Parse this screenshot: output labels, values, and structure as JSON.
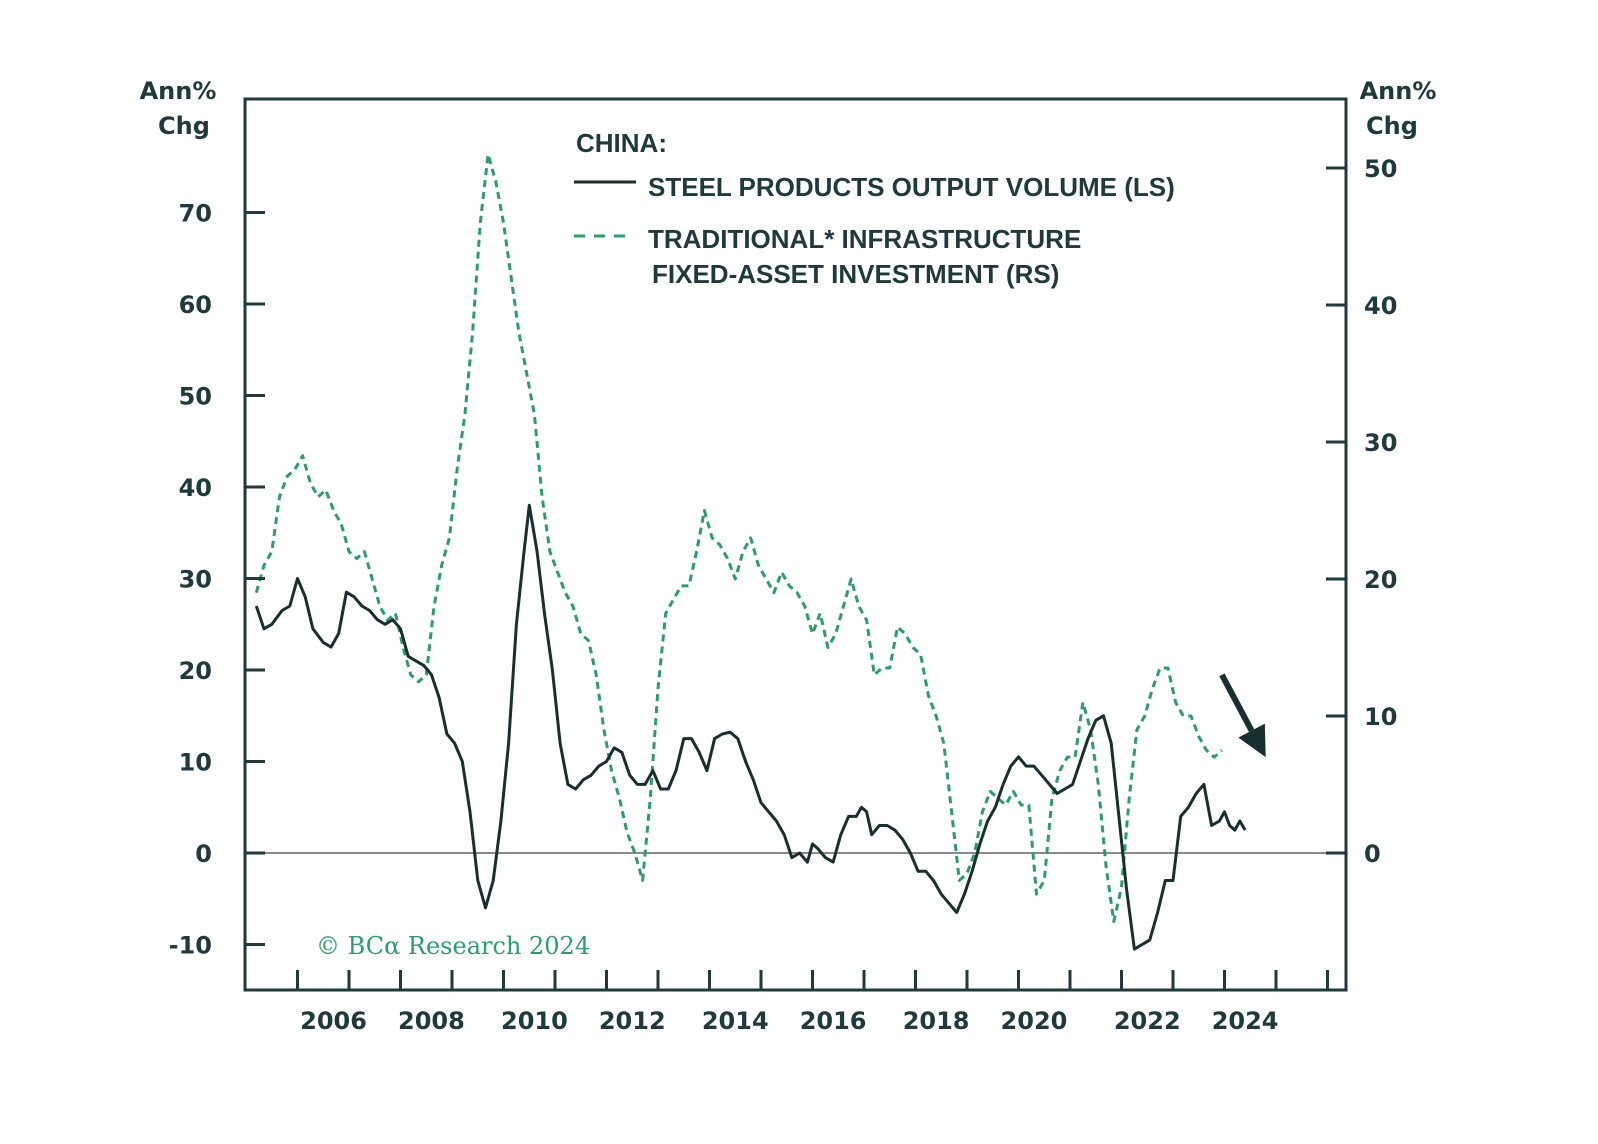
{
  "colors": {
    "steel": "#17302f",
    "infra": "#2a9d6a",
    "frame": "#1e3a3a",
    "zero": "#8a8a8a"
  },
  "chart_data": {
    "type": "line",
    "left_axis": {
      "title_line1": "Ann%",
      "title_line2": "Chg",
      "ylim": [
        -15,
        82
      ],
      "ticks": [
        -10,
        0,
        10,
        20,
        30,
        40,
        50,
        60,
        70
      ]
    },
    "right_axis": {
      "title_line1": "Ann%",
      "title_line2": "Chg",
      "ylim": [
        -10,
        55
      ],
      "ticks": [
        0,
        10,
        20,
        30,
        40,
        50
      ]
    },
    "xlim": [
      2004.1,
      2025.0
    ],
    "x_ticks": [
      2005,
      2006,
      2007,
      2008,
      2009,
      2010,
      2011,
      2012,
      2013,
      2014,
      2015,
      2016,
      2017,
      2018,
      2019,
      2020,
      2021,
      2022,
      2023,
      2024,
      2025
    ],
    "x_tick_labels": [
      {
        "x": 2005.7,
        "label": "2006"
      },
      {
        "x": 2007.6,
        "label": "2008"
      },
      {
        "x": 2009.6,
        "label": "2010"
      },
      {
        "x": 2011.5,
        "label": "2012"
      },
      {
        "x": 2013.5,
        "label": "2014"
      },
      {
        "x": 2015.4,
        "label": "2016"
      },
      {
        "x": 2017.4,
        "label": "2018"
      },
      {
        "x": 2019.3,
        "label": "2020"
      },
      {
        "x": 2021.5,
        "label": "2022"
      },
      {
        "x": 2023.4,
        "label": "2024"
      }
    ],
    "legend": {
      "title": "CHINA:",
      "steel_label": "STEEL PRODUCTS OUTPUT VOLUME (LS)",
      "infra_label_line1": "TRADITIONAL* INFRASTRUCTURE",
      "infra_label_line2": "FIXED-ASSET INVESTMENT (RS)",
      "placement": "top-center"
    },
    "credit": "© BCα Research 2024",
    "series": [
      {
        "name": "STEEL PRODUCTS OUTPUT VOLUME (LS)",
        "axis": "left",
        "style": "solid",
        "points": [
          [
            2004.2,
            27
          ],
          [
            2004.35,
            24.5
          ],
          [
            2004.5,
            25
          ],
          [
            2004.7,
            26.5
          ],
          [
            2004.85,
            27
          ],
          [
            2005.0,
            30
          ],
          [
            2005.15,
            28
          ],
          [
            2005.3,
            24.5
          ],
          [
            2005.5,
            23
          ],
          [
            2005.65,
            22.5
          ],
          [
            2005.8,
            24
          ],
          [
            2005.95,
            28.5
          ],
          [
            2006.1,
            28
          ],
          [
            2006.25,
            27
          ],
          [
            2006.4,
            26.5
          ],
          [
            2006.55,
            25.5
          ],
          [
            2006.7,
            25
          ],
          [
            2006.85,
            25.5
          ],
          [
            2007.0,
            24.5
          ],
          [
            2007.15,
            21.5
          ],
          [
            2007.3,
            21
          ],
          [
            2007.45,
            20.5
          ],
          [
            2007.6,
            19.5
          ],
          [
            2007.75,
            17
          ],
          [
            2007.9,
            13
          ],
          [
            2008.05,
            12
          ],
          [
            2008.2,
            10
          ],
          [
            2008.35,
            4.5
          ],
          [
            2008.5,
            -3
          ],
          [
            2008.65,
            -6
          ],
          [
            2008.8,
            -3
          ],
          [
            2008.95,
            3.5
          ],
          [
            2009.1,
            12
          ],
          [
            2009.25,
            25
          ],
          [
            2009.4,
            33
          ],
          [
            2009.5,
            38
          ],
          [
            2009.65,
            33
          ],
          [
            2009.8,
            26
          ],
          [
            2009.95,
            20
          ],
          [
            2010.1,
            12
          ],
          [
            2010.25,
            7.5
          ],
          [
            2010.4,
            7
          ],
          [
            2010.55,
            8
          ],
          [
            2010.7,
            8.5
          ],
          [
            2010.85,
            9.5
          ],
          [
            2011.0,
            10
          ],
          [
            2011.15,
            11.5
          ],
          [
            2011.3,
            11
          ],
          [
            2011.45,
            8.5
          ],
          [
            2011.6,
            7.5
          ],
          [
            2011.75,
            7.5
          ],
          [
            2011.9,
            9
          ],
          [
            2012.05,
            7
          ],
          [
            2012.2,
            7
          ],
          [
            2012.35,
            9
          ],
          [
            2012.5,
            12.5
          ],
          [
            2012.65,
            12.5
          ],
          [
            2012.8,
            11
          ],
          [
            2012.95,
            9
          ],
          [
            2013.1,
            12.5
          ],
          [
            2013.25,
            13
          ],
          [
            2013.4,
            13.2
          ],
          [
            2013.55,
            12.5
          ],
          [
            2013.7,
            10
          ],
          [
            2013.85,
            8
          ],
          [
            2014.0,
            5.5
          ],
          [
            2014.15,
            4.5
          ],
          [
            2014.3,
            3.5
          ],
          [
            2014.45,
            2
          ],
          [
            2014.6,
            -0.5
          ],
          [
            2014.75,
            0
          ],
          [
            2014.9,
            -1
          ],
          [
            2015.0,
            1
          ],
          [
            2015.1,
            0.5
          ],
          [
            2015.25,
            -0.5
          ],
          [
            2015.4,
            -1
          ],
          [
            2015.55,
            2
          ],
          [
            2015.7,
            4
          ],
          [
            2015.85,
            4
          ],
          [
            2015.95,
            5
          ],
          [
            2016.05,
            4.5
          ],
          [
            2016.15,
            2
          ],
          [
            2016.3,
            3
          ],
          [
            2016.45,
            3
          ],
          [
            2016.6,
            2.5
          ],
          [
            2016.75,
            1.5
          ],
          [
            2016.9,
            0
          ],
          [
            2017.05,
            -2
          ],
          [
            2017.2,
            -2
          ],
          [
            2017.35,
            -3
          ],
          [
            2017.5,
            -4.5
          ],
          [
            2017.65,
            -5.5
          ],
          [
            2017.8,
            -6.5
          ],
          [
            2017.95,
            -4.5
          ],
          [
            2018.1,
            -2
          ],
          [
            2018.25,
            1
          ],
          [
            2018.4,
            3.5
          ],
          [
            2018.55,
            5
          ],
          [
            2018.7,
            7.5
          ],
          [
            2018.85,
            9.5
          ],
          [
            2019.0,
            10.5
          ],
          [
            2019.15,
            9.5
          ],
          [
            2019.3,
            9.5
          ],
          [
            2019.45,
            8.5
          ],
          [
            2019.6,
            7.5
          ],
          [
            2019.75,
            6.5
          ],
          [
            2019.9,
            7
          ],
          [
            2020.05,
            7.5
          ],
          [
            2020.2,
            10
          ],
          [
            2020.35,
            12.5
          ],
          [
            2020.5,
            14.5
          ],
          [
            2020.65,
            15
          ],
          [
            2020.8,
            12
          ],
          [
            2020.95,
            4
          ],
          [
            2021.1,
            -4
          ],
          [
            2021.25,
            -10.5
          ],
          [
            2021.4,
            -10
          ],
          [
            2021.55,
            -9.5
          ],
          [
            2021.7,
            -6.5
          ],
          [
            2021.85,
            -3
          ],
          [
            2022.0,
            -3
          ],
          [
            2022.15,
            4
          ],
          [
            2022.3,
            5
          ],
          [
            2022.45,
            6.5
          ],
          [
            2022.6,
            7.5
          ],
          [
            2022.75,
            3
          ],
          [
            2022.9,
            3.5
          ],
          [
            2023.0,
            4.5
          ],
          [
            2023.1,
            3
          ],
          [
            2023.2,
            2.5
          ],
          [
            2023.3,
            3.5
          ],
          [
            2023.4,
            2.5
          ]
        ]
      },
      {
        "name": "TRADITIONAL* INFRASTRUCTURE FIXED-ASSET INVESTMENT (RS)",
        "axis": "right",
        "style": "dashed",
        "points": [
          [
            2004.2,
            19
          ],
          [
            2004.35,
            21
          ],
          [
            2004.5,
            22
          ],
          [
            2004.65,
            26
          ],
          [
            2004.8,
            27.5
          ],
          [
            2004.95,
            28
          ],
          [
            2005.1,
            29
          ],
          [
            2005.25,
            27
          ],
          [
            2005.4,
            26
          ],
          [
            2005.55,
            26.5
          ],
          [
            2005.7,
            25
          ],
          [
            2005.85,
            24
          ],
          [
            2006.0,
            22
          ],
          [
            2006.15,
            21.5
          ],
          [
            2006.3,
            22
          ],
          [
            2006.45,
            20
          ],
          [
            2006.6,
            18
          ],
          [
            2006.75,
            17
          ],
          [
            2006.9,
            17.5
          ],
          [
            2007.05,
            15
          ],
          [
            2007.2,
            13
          ],
          [
            2007.35,
            12.5
          ],
          [
            2007.5,
            13
          ],
          [
            2007.65,
            18
          ],
          [
            2007.8,
            21
          ],
          [
            2007.95,
            23
          ],
          [
            2008.1,
            28
          ],
          [
            2008.25,
            32
          ],
          [
            2008.4,
            38
          ],
          [
            2008.55,
            46
          ],
          [
            2008.7,
            51
          ],
          [
            2008.85,
            49
          ],
          [
            2009.0,
            46
          ],
          [
            2009.15,
            42
          ],
          [
            2009.3,
            38
          ],
          [
            2009.45,
            35
          ],
          [
            2009.6,
            32
          ],
          [
            2009.75,
            26
          ],
          [
            2009.9,
            22
          ],
          [
            2010.05,
            20.5
          ],
          [
            2010.2,
            19
          ],
          [
            2010.35,
            18
          ],
          [
            2010.5,
            16
          ],
          [
            2010.65,
            15.5
          ],
          [
            2010.8,
            13
          ],
          [
            2010.95,
            9
          ],
          [
            2011.1,
            6
          ],
          [
            2011.25,
            4
          ],
          [
            2011.4,
            1.5
          ],
          [
            2011.55,
            0
          ],
          [
            2011.7,
            -2
          ],
          [
            2011.85,
            4
          ],
          [
            2012.0,
            12
          ],
          [
            2012.15,
            17.5
          ],
          [
            2012.3,
            18.5
          ],
          [
            2012.45,
            19.5
          ],
          [
            2012.6,
            19.5
          ],
          [
            2012.75,
            22
          ],
          [
            2012.9,
            25
          ],
          [
            2013.05,
            23
          ],
          [
            2013.2,
            22.5
          ],
          [
            2013.35,
            21.5
          ],
          [
            2013.5,
            20
          ],
          [
            2013.65,
            22
          ],
          [
            2013.8,
            23
          ],
          [
            2013.95,
            21
          ],
          [
            2014.1,
            20
          ],
          [
            2014.25,
            19
          ],
          [
            2014.4,
            20.5
          ],
          [
            2014.55,
            19.5
          ],
          [
            2014.7,
            19
          ],
          [
            2014.85,
            18
          ],
          [
            2015.0,
            16
          ],
          [
            2015.15,
            17.5
          ],
          [
            2015.3,
            15
          ],
          [
            2015.45,
            16
          ],
          [
            2015.6,
            18
          ],
          [
            2015.75,
            20
          ],
          [
            2015.9,
            18
          ],
          [
            2016.05,
            17
          ],
          [
            2016.2,
            13
          ],
          [
            2016.35,
            13.5
          ],
          [
            2016.5,
            13.5
          ],
          [
            2016.65,
            16.5
          ],
          [
            2016.8,
            16
          ],
          [
            2016.95,
            15
          ],
          [
            2017.1,
            14.5
          ],
          [
            2017.25,
            11.5
          ],
          [
            2017.4,
            10
          ],
          [
            2017.55,
            8
          ],
          [
            2017.7,
            3
          ],
          [
            2017.85,
            -2
          ],
          [
            2018.0,
            -1.5
          ],
          [
            2018.15,
            0
          ],
          [
            2018.3,
            3
          ],
          [
            2018.45,
            4.5
          ],
          [
            2018.6,
            4
          ],
          [
            2018.75,
            3.5
          ],
          [
            2018.9,
            4.5
          ],
          [
            2019.05,
            3.5
          ],
          [
            2019.2,
            3.5
          ],
          [
            2019.35,
            -3
          ],
          [
            2019.5,
            -2
          ],
          [
            2019.65,
            4
          ],
          [
            2019.8,
            6
          ],
          [
            2019.95,
            7
          ],
          [
            2020.1,
            7
          ],
          [
            2020.25,
            11
          ],
          [
            2020.4,
            9
          ],
          [
            2020.55,
            5
          ],
          [
            2020.7,
            -1
          ],
          [
            2020.85,
            -5
          ],
          [
            2021.0,
            -2.5
          ],
          [
            2021.15,
            4
          ],
          [
            2021.3,
            9
          ],
          [
            2021.45,
            10
          ],
          [
            2021.6,
            12
          ],
          [
            2021.75,
            13.5
          ],
          [
            2021.9,
            13.5
          ],
          [
            2022.05,
            11
          ],
          [
            2022.2,
            10
          ],
          [
            2022.35,
            10
          ],
          [
            2022.5,
            8.5
          ],
          [
            2022.65,
            7.5
          ],
          [
            2022.8,
            7
          ],
          [
            2022.95,
            7.5
          ]
        ]
      }
    ],
    "annotation": {
      "type": "arrow",
      "meaning": "downward trend",
      "from": [
        2022.95,
        13
      ],
      "to": [
        2023.8,
        7
      ]
    }
  }
}
